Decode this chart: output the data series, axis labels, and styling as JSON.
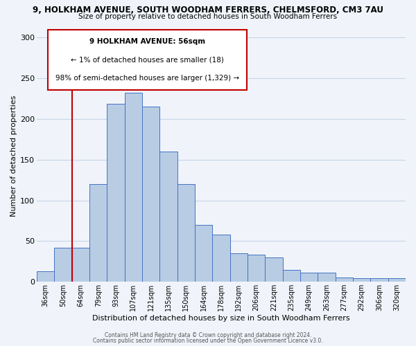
{
  "title": "9, HOLKHAM AVENUE, SOUTH WOODHAM FERRERS, CHELMSFORD, CM3 7AU",
  "subtitle": "Size of property relative to detached houses in South Woodham Ferrers",
  "xlabel": "Distribution of detached houses by size in South Woodham Ferrers",
  "ylabel": "Number of detached properties",
  "categories": [
    "36sqm",
    "50sqm",
    "64sqm",
    "79sqm",
    "93sqm",
    "107sqm",
    "121sqm",
    "135sqm",
    "150sqm",
    "164sqm",
    "178sqm",
    "192sqm",
    "206sqm",
    "221sqm",
    "235sqm",
    "249sqm",
    "263sqm",
    "277sqm",
    "292sqm",
    "306sqm",
    "320sqm"
  ],
  "values": [
    13,
    42,
    42,
    120,
    219,
    232,
    215,
    160,
    120,
    70,
    58,
    35,
    33,
    30,
    15,
    11,
    11,
    5,
    4,
    4,
    4
  ],
  "bar_color": "#b8cce4",
  "bar_edge_color": "#4472c4",
  "background_color": "#f0f4fa",
  "grid_color": "#c8d4e8",
  "annotation_text_line1": "9 HOLKHAM AVENUE: 56sqm",
  "annotation_text_line2": "← 1% of detached houses are smaller (18)",
  "annotation_text_line3": "98% of semi-detached houses are larger (1,329) →",
  "annotation_box_color": "#ffffff",
  "annotation_box_edge_color": "#c00000",
  "red_line_color": "#c00000",
  "footer_line1": "Contains HM Land Registry data © Crown copyright and database right 2024.",
  "footer_line2": "Contains public sector information licensed under the Open Government Licence v3.0.",
  "ylim": [
    0,
    310
  ],
  "yticks": [
    0,
    50,
    100,
    150,
    200,
    250,
    300
  ]
}
